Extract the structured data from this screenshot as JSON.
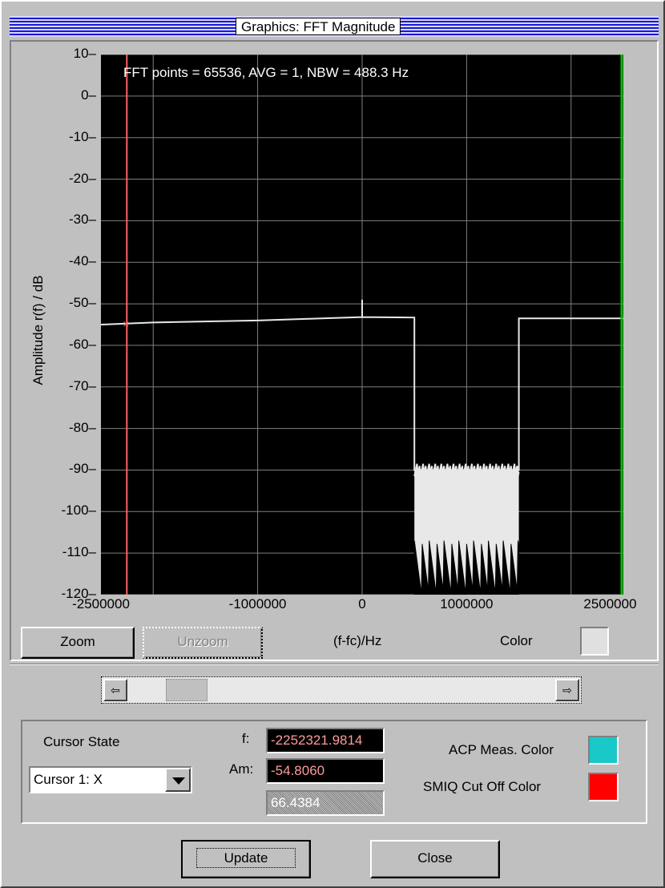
{
  "window": {
    "title": "Graphics: FFT Magnitude"
  },
  "plot": {
    "info": "FFT points = 65536, AVG = 1, NBW = 488.3 Hz",
    "ylabel": "Amplitude r(f) / dB",
    "xlabel": "(f-fc)/Hz",
    "yticks": [
      "10",
      "0",
      "-10",
      "-20",
      "-30",
      "-40",
      "-50",
      "-60",
      "-70",
      "-80",
      "-90",
      "-100",
      "-110",
      "-120"
    ],
    "xticks": [
      "-2500000",
      "-1000000",
      "0",
      "1000000",
      "2500000"
    ],
    "colors": {
      "background": "#000000",
      "trace": "#e8e8e8",
      "grid": "#808080",
      "cursor1": "#ff6060",
      "cursor2": "#00c000"
    }
  },
  "chart_data": {
    "type": "line",
    "xlabel": "(f-fc)/Hz",
    "ylabel": "Amplitude r(f) / dB",
    "xlim": [
      -2500000,
      2500000
    ],
    "ylim": [
      -120,
      10
    ],
    "x_ticks": [
      -2500000,
      -1000000,
      0,
      1000000,
      2500000
    ],
    "y_ticks": [
      10,
      0,
      -10,
      -20,
      -30,
      -40,
      -50,
      -60,
      -70,
      -80,
      -90,
      -100,
      -110,
      -120
    ],
    "grid": true,
    "series": [
      {
        "x": [
          -2500000,
          -2000000,
          -1000000,
          -500000,
          0,
          0,
          0,
          500000,
          500000,
          1500000,
          1500000,
          2500000
        ],
        "y": [
          -55,
          -54.5,
          -54,
          -53.6,
          -53.2,
          -49,
          -53.2,
          -53.3,
          -90,
          -90,
          -53.5,
          -53.5
        ]
      }
    ],
    "noise_band": {
      "x": [
        500000,
        1500000
      ],
      "y_top": -90,
      "y_bottom": -120
    },
    "cursors": [
      {
        "x": -2252321.98,
        "y": -54.806
      },
      {
        "x": 2500000
      }
    ]
  },
  "controls": {
    "zoom": "Zoom",
    "unzoom": "Unzoom",
    "color_label": "Color",
    "cursor_state_label": "Cursor State",
    "cursor_select": "Cursor 1: X",
    "f_label": "f:",
    "f_value": "-2252321.9814",
    "am_label": "Am:",
    "am_value": "-54.8060",
    "third_value": "66.4384",
    "acp_label": "ACP Meas. Color",
    "acp_color": "#1ac8c8",
    "smiq_label": "SMIQ Cut Off Color",
    "smiq_color": "#ff0000",
    "update": "Update",
    "close": "Close"
  }
}
